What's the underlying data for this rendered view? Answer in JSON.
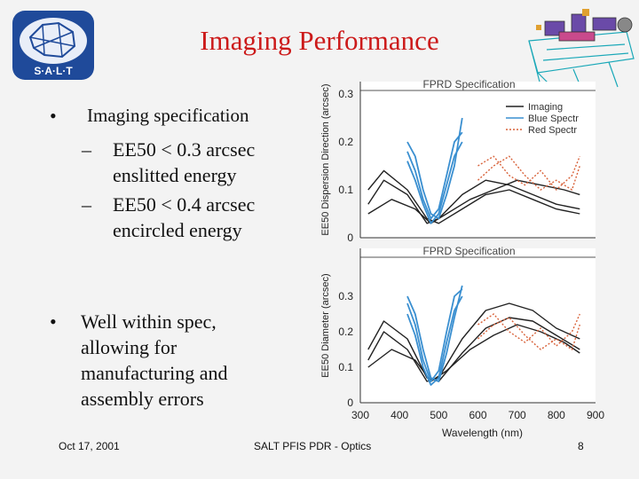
{
  "slide": {
    "title": "Imaging Performance",
    "logo_text": "S·A·L·T",
    "bullets": [
      {
        "label": "Imaging specification"
      },
      {
        "label": "Well within spec, allowing for manufacturing and assembly errors"
      }
    ],
    "subbullets": [
      {
        "line1": "EE50 < 0.3 arcsec",
        "line2": "enslitted energy"
      },
      {
        "line1": "EE50 < 0.4 arcsec",
        "line2": "encircled energy"
      }
    ],
    "footer": {
      "date": "Oct 17, 2001",
      "center": "SALT PFIS PDR - Optics",
      "page": "8"
    }
  },
  "chart_data": [
    {
      "type": "line",
      "ylabel": "EE50 Dispersion Direction (arcsec)",
      "spec_label": "FPRD Specification",
      "spec_value": 0.3,
      "ylim": [
        0,
        0.3
      ],
      "yticks": [
        "0",
        "0.1",
        "0.2",
        "0.3"
      ],
      "xlim": [
        300,
        900
      ],
      "legend": [
        "Imaging",
        "Blue Spectr",
        "Red Spectr"
      ],
      "colors": {
        "imaging": "#222222",
        "blue": "#3a8fd0",
        "red": "#d8623a"
      },
      "series": [
        {
          "name": "Imaging",
          "x": [
            320,
            360,
            420,
            470,
            500,
            560,
            620,
            680,
            740,
            800,
            860
          ],
          "y": [
            0.07,
            0.12,
            0.09,
            0.03,
            0.04,
            0.09,
            0.12,
            0.11,
            0.09,
            0.07,
            0.06
          ]
        },
        {
          "name": "Imaging",
          "x": [
            320,
            360,
            420,
            470,
            500,
            560,
            620,
            680,
            740,
            800,
            860
          ],
          "y": [
            0.1,
            0.14,
            0.1,
            0.04,
            0.03,
            0.06,
            0.09,
            0.1,
            0.08,
            0.06,
            0.05
          ]
        },
        {
          "name": "Imaging",
          "x": [
            320,
            380,
            440,
            480,
            520,
            580,
            640,
            700,
            760,
            820,
            860
          ],
          "y": [
            0.05,
            0.08,
            0.06,
            0.03,
            0.05,
            0.08,
            0.1,
            0.12,
            0.11,
            0.1,
            0.09
          ]
        },
        {
          "name": "Blue Spectr",
          "x": [
            420,
            440,
            460,
            480,
            500,
            520,
            540,
            560
          ],
          "y": [
            0.18,
            0.14,
            0.08,
            0.04,
            0.06,
            0.13,
            0.2,
            0.22
          ]
        },
        {
          "name": "Blue Spectr",
          "x": [
            420,
            440,
            460,
            480,
            500,
            520,
            540,
            560
          ],
          "y": [
            0.16,
            0.12,
            0.07,
            0.03,
            0.05,
            0.11,
            0.17,
            0.2
          ]
        },
        {
          "name": "Blue Spectr",
          "x": [
            420,
            440,
            460,
            480,
            500,
            520,
            540,
            560
          ],
          "y": [
            0.2,
            0.17,
            0.1,
            0.05,
            0.04,
            0.09,
            0.15,
            0.25
          ]
        },
        {
          "name": "Red Spectr",
          "x": [
            600,
            640,
            680,
            720,
            760,
            800,
            840,
            860
          ],
          "y": [
            0.15,
            0.17,
            0.13,
            0.11,
            0.14,
            0.1,
            0.13,
            0.17
          ]
        },
        {
          "name": "Red Spectr",
          "x": [
            600,
            640,
            680,
            720,
            760,
            800,
            840,
            860
          ],
          "y": [
            0.12,
            0.15,
            0.17,
            0.13,
            0.1,
            0.12,
            0.1,
            0.15
          ]
        }
      ]
    },
    {
      "type": "line",
      "ylabel": "EE50 Diameter (arcsec)",
      "spec_label": "FPRD Specification",
      "spec_value": 0.4,
      "ylim": [
        0,
        0.4
      ],
      "yticks": [
        "0",
        "0.1",
        "0.2",
        "0.3"
      ],
      "xlim": [
        300,
        900
      ],
      "xticks": [
        "300",
        "400",
        "500",
        "600",
        "700",
        "800",
        "900"
      ],
      "xlabel": "Wavelength (nm)",
      "colors": {
        "imaging": "#222222",
        "blue": "#3a8fd0",
        "red": "#d8623a"
      },
      "series": [
        {
          "name": "Imaging",
          "x": [
            320,
            360,
            420,
            470,
            500,
            560,
            620,
            680,
            740,
            800,
            860
          ],
          "y": [
            0.12,
            0.2,
            0.15,
            0.06,
            0.07,
            0.18,
            0.26,
            0.28,
            0.26,
            0.21,
            0.18
          ]
        },
        {
          "name": "Imaging",
          "x": [
            320,
            360,
            420,
            470,
            500,
            560,
            620,
            680,
            740,
            800,
            860
          ],
          "y": [
            0.15,
            0.23,
            0.18,
            0.07,
            0.06,
            0.14,
            0.21,
            0.24,
            0.23,
            0.19,
            0.15
          ]
        },
        {
          "name": "Imaging",
          "x": [
            320,
            380,
            440,
            480,
            520,
            580,
            640,
            700,
            760,
            820,
            860
          ],
          "y": [
            0.1,
            0.15,
            0.12,
            0.06,
            0.09,
            0.15,
            0.19,
            0.22,
            0.2,
            0.17,
            0.14
          ]
        },
        {
          "name": "Blue Spectr",
          "x": [
            420,
            440,
            460,
            480,
            500,
            520,
            540,
            560
          ],
          "y": [
            0.28,
            0.22,
            0.12,
            0.06,
            0.09,
            0.2,
            0.3,
            0.32
          ]
        },
        {
          "name": "Blue Spectr",
          "x": [
            420,
            440,
            460,
            480,
            500,
            520,
            540,
            560
          ],
          "y": [
            0.25,
            0.19,
            0.1,
            0.05,
            0.07,
            0.17,
            0.26,
            0.3
          ]
        },
        {
          "name": "Blue Spectr",
          "x": [
            420,
            440,
            460,
            480,
            500,
            520,
            540,
            560
          ],
          "y": [
            0.3,
            0.25,
            0.15,
            0.07,
            0.06,
            0.14,
            0.24,
            0.33
          ]
        },
        {
          "name": "Red Spectr",
          "x": [
            600,
            640,
            680,
            720,
            760,
            800,
            840,
            860
          ],
          "y": [
            0.22,
            0.25,
            0.2,
            0.17,
            0.21,
            0.16,
            0.2,
            0.25
          ]
        },
        {
          "name": "Red Spectr",
          "x": [
            600,
            640,
            680,
            720,
            760,
            800,
            840,
            860
          ],
          "y": [
            0.18,
            0.22,
            0.24,
            0.19,
            0.15,
            0.18,
            0.15,
            0.22
          ]
        }
      ]
    }
  ]
}
